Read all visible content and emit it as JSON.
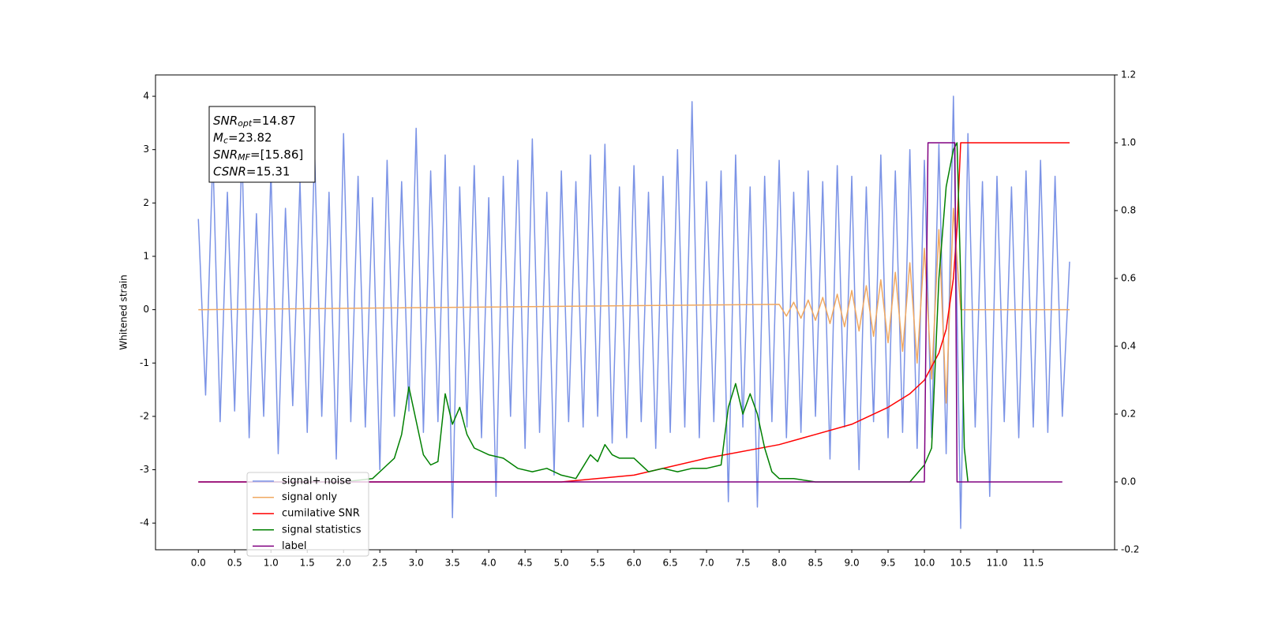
{
  "chart_data": {
    "type": "line",
    "ylabel": "Whitened strain",
    "xlim": [
      -0.59,
      12.62
    ],
    "ylim": [
      -4.5,
      4.4
    ],
    "y2lim": [
      -0.2,
      1.2
    ],
    "xticks": [
      {
        "value": 0,
        "label": "0.0"
      },
      0.5,
      {
        "value": 1,
        "label": "1.0"
      },
      1.5,
      {
        "value": 2,
        "label": "2.0"
      },
      2.5,
      {
        "value": 3,
        "label": "3.0"
      },
      3.5,
      {
        "value": 4,
        "label": "4.0"
      },
      4.5,
      {
        "value": 5,
        "label": "5.0"
      },
      5.5,
      {
        "value": 6,
        "label": "6.0"
      },
      6.5,
      {
        "value": 7,
        "label": "7.0"
      },
      7.5,
      {
        "value": 8,
        "label": "8.0"
      },
      8.5,
      {
        "value": 9,
        "label": "9.0"
      },
      9.5,
      {
        "value": 10,
        "label": "10.0"
      },
      10.5,
      {
        "value": 11,
        "label": "11.0"
      },
      11.5
    ],
    "yticks": [
      -4,
      -3,
      -2,
      -1,
      0,
      1,
      2,
      3,
      4
    ],
    "y2ticks": [
      -0.2,
      {
        "value": 0,
        "label": "0.0"
      },
      0.2,
      0.4,
      0.6,
      0.8,
      {
        "value": 1,
        "label": "1.0"
      },
      1.2
    ],
    "legend": "lower left",
    "annotation": [
      {
        "symbol": "SNR",
        "sub": "opt",
        "text": "=14.87"
      },
      {
        "symbol": "M",
        "sub": "c",
        "text": "=23.82"
      },
      {
        "symbol": "SNR",
        "sub": "MF",
        "text": "=[15.86]"
      },
      {
        "symbol": "CSNR",
        "text": "=15.31"
      }
    ],
    "series": [
      {
        "name": "signal+ noise",
        "color": "#7b93e6",
        "x": [
          0,
          0.1,
          0.2,
          0.3,
          0.4,
          0.5,
          0.6,
          0.7,
          0.8,
          0.9,
          1.0,
          1.1,
          1.2,
          1.3,
          1.4,
          1.5,
          1.6,
          1.7,
          1.8,
          1.9,
          2.0,
          2.1,
          2.2,
          2.3,
          2.4,
          2.5,
          2.6,
          2.7,
          2.8,
          2.9,
          3.0,
          3.1,
          3.2,
          3.3,
          3.4,
          3.5,
          3.6,
          3.7,
          3.8,
          3.9,
          4.0,
          4.1,
          4.2,
          4.3,
          4.4,
          4.5,
          4.6,
          4.7,
          4.8,
          4.9,
          5.0,
          5.1,
          5.2,
          5.3,
          5.4,
          5.5,
          5.6,
          5.7,
          5.8,
          5.9,
          6.0,
          6.1,
          6.2,
          6.3,
          6.4,
          6.5,
          6.6,
          6.7,
          6.8,
          6.9,
          7.0,
          7.1,
          7.2,
          7.3,
          7.4,
          7.5,
          7.6,
          7.7,
          7.8,
          7.9,
          8.0,
          8.1,
          8.2,
          8.3,
          8.4,
          8.5,
          8.6,
          8.7,
          8.8,
          8.9,
          9.0,
          9.1,
          9.2,
          9.3,
          9.4,
          9.5,
          9.6,
          9.7,
          9.8,
          9.9,
          10.0,
          10.1,
          10.2,
          10.3,
          10.4,
          10.5,
          10.6,
          10.7,
          10.8,
          10.9,
          11.0,
          11.1,
          11.2,
          11.3,
          11.4,
          11.5,
          11.6,
          11.7,
          11.8,
          11.9,
          12.0
        ],
        "values": [
          1.7,
          -1.6,
          2.9,
          -2.1,
          2.2,
          -1.9,
          3.0,
          -2.4,
          1.8,
          -2.0,
          2.6,
          -2.7,
          1.9,
          -1.8,
          2.4,
          -2.3,
          3.0,
          -2.0,
          2.2,
          -2.8,
          3.3,
          -2.1,
          2.5,
          -2.2,
          2.1,
          -3.0,
          2.8,
          -2.0,
          2.4,
          -1.9,
          3.4,
          -2.3,
          2.6,
          -2.1,
          2.9,
          -3.9,
          2.3,
          -2.2,
          2.7,
          -2.4,
          2.1,
          -3.5,
          2.5,
          -2.0,
          2.8,
          -2.6,
          3.2,
          -2.3,
          2.2,
          -3.1,
          2.6,
          -2.1,
          2.4,
          -2.2,
          2.9,
          -2.0,
          3.1,
          -2.5,
          2.3,
          -2.4,
          2.7,
          -2.1,
          2.2,
          -2.6,
          2.5,
          -2.3,
          3.0,
          -2.2,
          3.9,
          -2.4,
          2.4,
          -2.1,
          2.6,
          -3.6,
          2.9,
          -2.2,
          2.3,
          -3.7,
          2.5,
          -2.1,
          2.8,
          -2.4,
          2.2,
          -2.3,
          2.6,
          -2.0,
          2.4,
          -2.8,
          2.7,
          -2.2,
          2.5,
          -3.0,
          2.3,
          -2.1,
          2.9,
          -2.4,
          2.6,
          -2.3,
          3.0,
          -2.6,
          2.8,
          -2.4,
          3.1,
          -2.7,
          4.0,
          -4.1,
          3.3,
          -2.2,
          2.4,
          -3.5,
          2.5,
          -2.1,
          2.3,
          -2.4,
          2.6,
          -2.2,
          2.8,
          -2.3,
          2.5,
          -2.0,
          0.9
        ]
      },
      {
        "name": "signal only",
        "color": "#f0a860",
        "x": [
          0,
          8.0,
          8.1,
          8.2,
          8.3,
          8.4,
          8.5,
          8.6,
          8.7,
          8.8,
          8.9,
          9.0,
          9.1,
          9.2,
          9.3,
          9.4,
          9.5,
          9.6,
          9.7,
          9.8,
          9.9,
          10.0,
          10.1,
          10.2,
          10.3,
          10.4,
          10.5,
          10.6,
          12.0
        ],
        "values": [
          0,
          0.1,
          -0.12,
          0.14,
          -0.16,
          0.18,
          -0.2,
          0.23,
          -0.26,
          0.29,
          -0.32,
          0.36,
          -0.4,
          0.45,
          -0.5,
          0.56,
          -0.62,
          0.7,
          -0.78,
          0.88,
          -1.0,
          1.15,
          -1.3,
          1.5,
          -1.75,
          1.9,
          0,
          0,
          0
        ]
      },
      {
        "name": "cumilative SNR",
        "color": "#ff0000",
        "axis": "y2",
        "x": [
          0,
          5.0,
          6.0,
          7.0,
          8.0,
          8.5,
          9.0,
          9.5,
          9.8,
          10.0,
          10.2,
          10.3,
          10.4,
          10.45,
          10.5,
          12.0
        ],
        "values": [
          0,
          0,
          0.02,
          0.07,
          0.11,
          0.14,
          0.17,
          0.22,
          0.26,
          0.3,
          0.38,
          0.45,
          0.6,
          0.75,
          1.0,
          1.0
        ]
      },
      {
        "name": "signal statistics",
        "color": "#008000",
        "axis": "y2",
        "x": [
          0.7,
          2.0,
          2.4,
          2.6,
          2.7,
          2.8,
          2.9,
          3.0,
          3.1,
          3.2,
          3.3,
          3.4,
          3.5,
          3.6,
          3.7,
          3.8,
          4.0,
          4.2,
          4.4,
          4.6,
          4.8,
          5.0,
          5.2,
          5.4,
          5.5,
          5.6,
          5.7,
          5.8,
          6.0,
          6.2,
          6.4,
          6.6,
          6.8,
          7.0,
          7.2,
          7.3,
          7.4,
          7.5,
          7.6,
          7.7,
          7.8,
          7.9,
          8.0,
          8.2,
          8.5,
          9.0,
          9.8,
          10.0,
          10.1,
          10.2,
          10.3,
          10.4,
          10.45,
          10.5,
          10.55,
          10.6
        ],
        "values": [
          0,
          0,
          0.01,
          0.05,
          0.07,
          0.14,
          0.28,
          0.18,
          0.08,
          0.05,
          0.06,
          0.26,
          0.17,
          0.22,
          0.14,
          0.1,
          0.08,
          0.07,
          0.04,
          0.03,
          0.04,
          0.02,
          0.01,
          0.08,
          0.06,
          0.11,
          0.08,
          0.07,
          0.07,
          0.03,
          0.04,
          0.03,
          0.04,
          0.04,
          0.05,
          0.22,
          0.29,
          0.2,
          0.26,
          0.2,
          0.1,
          0.03,
          0.01,
          0.01,
          0,
          0,
          0,
          0.05,
          0.1,
          0.6,
          0.87,
          0.98,
          1.0,
          0.6,
          0.1,
          0
        ]
      },
      {
        "name": "label",
        "color": "#800080",
        "axis": "y2",
        "x": [
          0,
          10.0,
          10.05,
          10.42,
          10.45,
          11.9
        ],
        "values": [
          0,
          0,
          1,
          1,
          0,
          0
        ]
      }
    ]
  }
}
